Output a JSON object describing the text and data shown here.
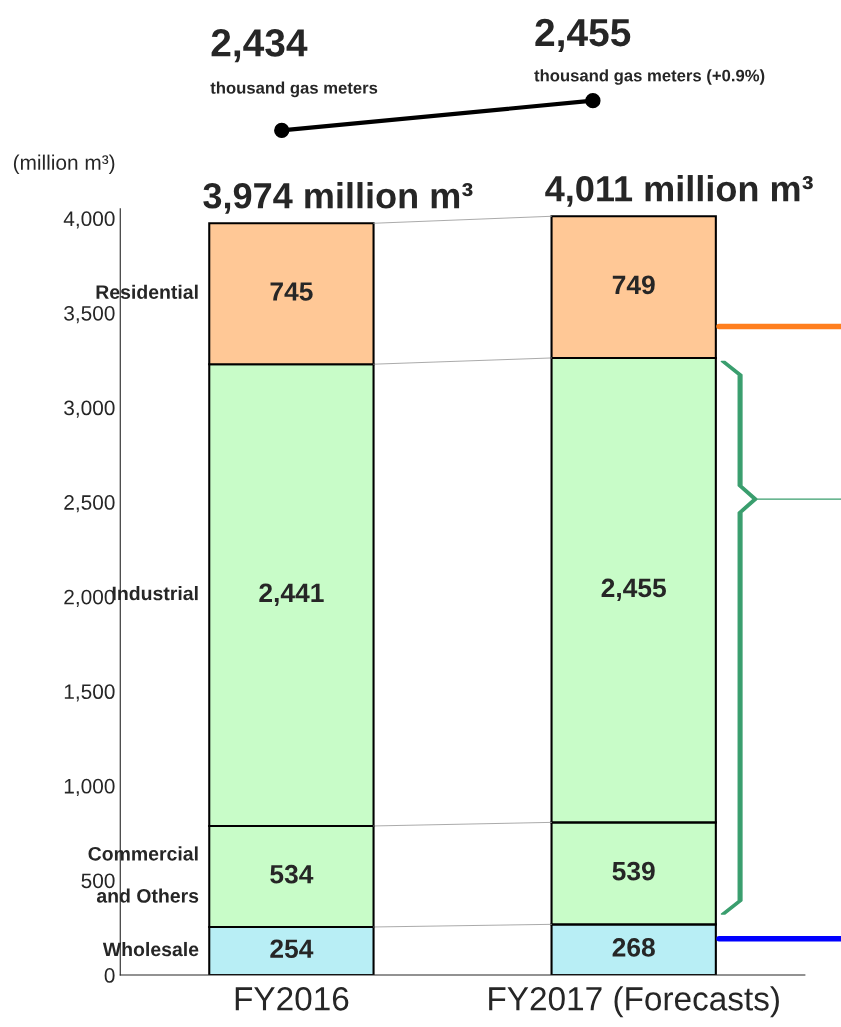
{
  "chart_data": {
    "type": "bar",
    "stacked": true,
    "ylabel": "(million m³)",
    "categories": [
      "FY2016",
      "FY2017 (Forecasts)"
    ],
    "series": [
      {
        "name": "Wholesale",
        "color": "#b8eef5",
        "values": [
          254,
          268
        ],
        "value_labels": [
          "254",
          "268"
        ]
      },
      {
        "name": "Commercial\nand Others",
        "color": "#c8fcc8",
        "values": [
          534,
          539
        ],
        "value_labels": [
          "534",
          "539"
        ]
      },
      {
        "name": "Industrial",
        "color": "#c8fcc8",
        "values": [
          2441,
          2455
        ],
        "value_labels": [
          "2,441",
          "2,455"
        ]
      },
      {
        "name": "Residential",
        "color": "#ffc896",
        "values": [
          745,
          749
        ],
        "value_labels": [
          "745",
          "749"
        ]
      }
    ],
    "totals": [
      "3,974 million m³",
      "4,011 million m³"
    ],
    "annotations": [
      "2,434",
      "thousand gas meters",
      "2,455",
      "thousand gas meters (+0.9%)"
    ],
    "ylim": [
      0,
      4050
    ],
    "yticks": [
      0,
      500,
      {
        "value": 1000,
        "label": "1,000"
      },
      {
        "value": 1500,
        "label": "1,500"
      },
      {
        "value": 2000,
        "label": "2,000"
      },
      {
        "value": 2500,
        "label": "2,500"
      },
      {
        "value": 3000,
        "label": "3,000"
      },
      {
        "value": 3500,
        "label": "3,500"
      },
      {
        "value": 4000,
        "label": "4,000"
      }
    ],
    "grid": false,
    "legend": false
  }
}
